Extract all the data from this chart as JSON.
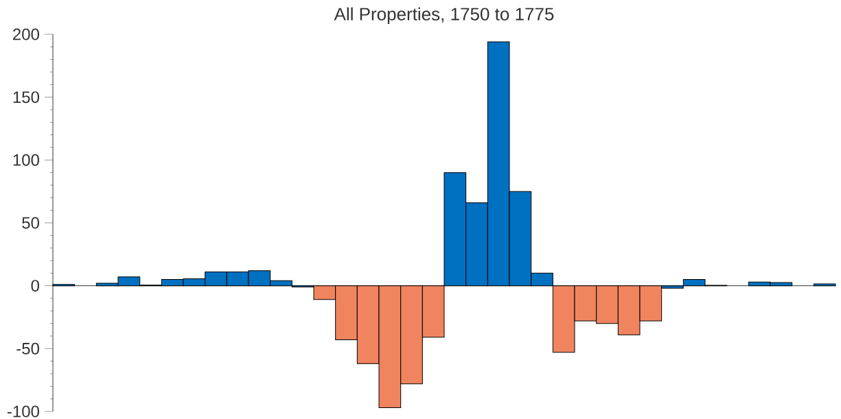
{
  "chart_data": {
    "type": "bar",
    "title": "All Properties, 1750 to 1775",
    "categories": [
      null,
      null,
      null,
      null,
      null,
      null,
      null,
      null,
      null,
      null,
      null,
      null,
      null,
      null,
      null,
      null,
      null,
      null,
      null,
      null,
      null,
      null,
      null,
      null,
      null,
      null,
      null,
      null,
      null,
      null,
      null,
      null,
      null,
      null,
      null,
      null
    ],
    "values": [
      1,
      0,
      2,
      7,
      0.5,
      5,
      5.5,
      11,
      11,
      12,
      4,
      -1,
      -11,
      -43,
      -62,
      -97,
      -78,
      -41,
      90,
      66,
      194,
      75,
      10,
      -53,
      -28,
      -30,
      -39,
      -28,
      -2,
      5,
      0.3,
      0,
      3,
      2.5,
      0,
      1.5
    ],
    "colors": [
      "#0070c0",
      "#0070c0",
      "#0070c0",
      "#0070c0",
      "#0070c0",
      "#0070c0",
      "#0070c0",
      "#0070c0",
      "#0070c0",
      "#0070c0",
      "#0070c0",
      "#0070c0",
      "#f0845f",
      "#f0845f",
      "#f0845f",
      "#f0845f",
      "#f0845f",
      "#f0845f",
      "#0070c0",
      "#0070c0",
      "#0070c0",
      "#0070c0",
      "#0070c0",
      "#f0845f",
      "#f0845f",
      "#f0845f",
      "#f0845f",
      "#f0845f",
      "#0070c0",
      "#0070c0",
      "#0070c0",
      "#0070c0",
      "#0070c0",
      "#0070c0",
      "#0070c0",
      "#0070c0"
    ],
    "ylim": [
      -100,
      200
    ],
    "yticks": [
      -100,
      -50,
      0,
      50,
      100,
      150,
      200
    ],
    "tick_labels": "y"
  }
}
